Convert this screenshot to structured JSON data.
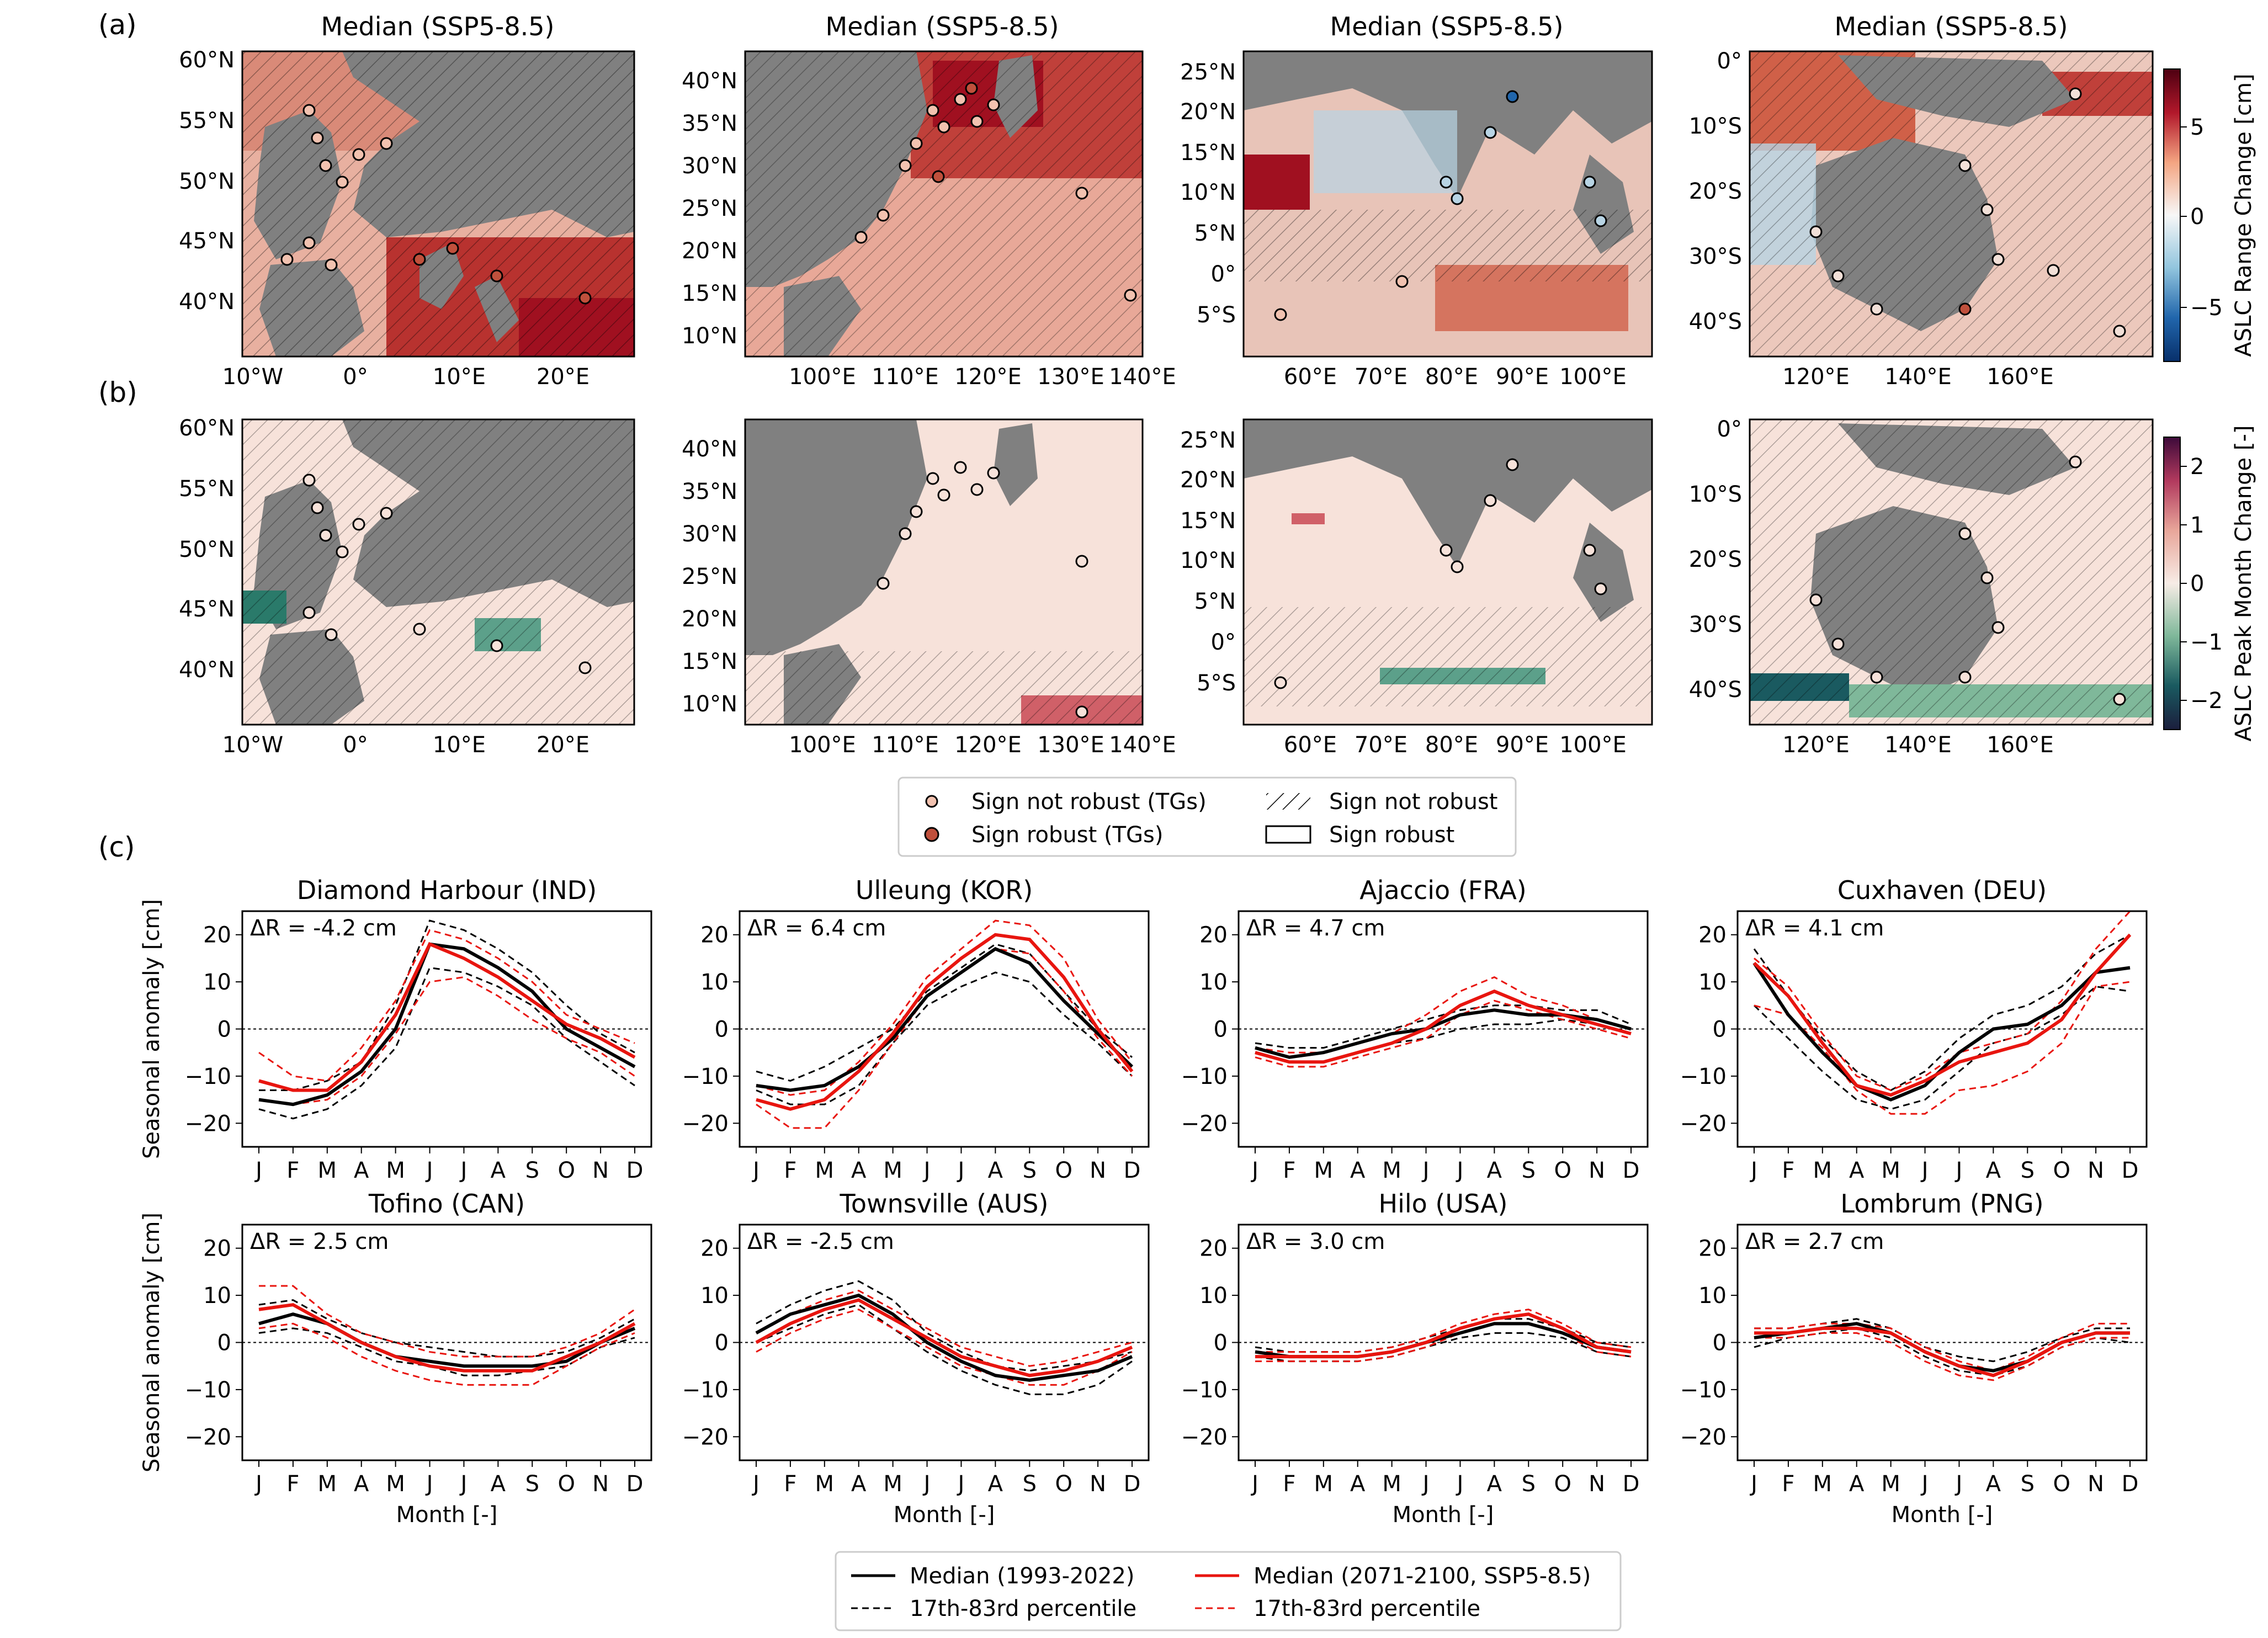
{
  "panel_labels": [
    "(a)",
    "(b)",
    "(c)"
  ],
  "maps": {
    "title": "Median (SSP5-8.5)",
    "columns": [
      {
        "region": "europe",
        "lon_ticks": [
          "10°W",
          "0°",
          "10°E",
          "20°E"
        ],
        "lat_ticks": [
          "60°N",
          "55°N",
          "50°N",
          "45°N",
          "40°N"
        ]
      },
      {
        "region": "east-asia",
        "lon_ticks": [
          "100°E",
          "110°E",
          "120°E",
          "130°E",
          "140°E"
        ],
        "lat_ticks": [
          "40°N",
          "35°N",
          "30°N",
          "25°N",
          "20°N",
          "15°N",
          "10°N"
        ]
      },
      {
        "region": "indian-ocean",
        "lon_ticks": [
          "60°E",
          "70°E",
          "80°E",
          "90°E",
          "100°E"
        ],
        "lat_ticks": [
          "25°N",
          "20°N",
          "15°N",
          "10°N",
          "5°N",
          "0°",
          "5°S"
        ]
      },
      {
        "region": "australia",
        "lon_ticks": [
          "120°E",
          "140°E",
          "160°E"
        ],
        "lat_ticks": [
          "0°",
          "10°S",
          "20°S",
          "30°S",
          "40°S"
        ]
      }
    ],
    "colorbar_a": {
      "label": "ASLC Range Change [cm]",
      "ticks": [
        "5",
        "0",
        "−5"
      ]
    },
    "colorbar_b": {
      "label": "ASLC Peak Month Change [-]",
      "ticks": [
        "2",
        "1",
        "0",
        "−1",
        "−2"
      ]
    },
    "colors": {
      "land": "#808080",
      "warm": "#b2182b",
      "cool": "#2166ac",
      "neutral": "#f7f0ec"
    }
  },
  "legend_maps": {
    "items": [
      "Sign not robust (TGs)",
      "Sign robust (TGs)",
      "Sign not robust",
      "Sign robust"
    ]
  },
  "chart_data": {
    "type": "line",
    "x": [
      "J",
      "F",
      "M",
      "A",
      "M",
      "J",
      "J",
      "A",
      "S",
      "O",
      "N",
      "D"
    ],
    "xlabel": "Month [-]",
    "ylabel": "Seasonal anomaly [cm]",
    "ylim": [
      -25,
      25
    ],
    "yticks": [
      "20",
      "10",
      "0",
      "−10",
      "−20"
    ],
    "colors": {
      "historical": "#000000",
      "future": "#e8150f"
    },
    "legend": {
      "hist_median": "Median (1993-2022)",
      "hist_pct": "17th-83rd percentile",
      "fut_median": "Median (2071-2100, SSP5-8.5)",
      "fut_pct": "17th-83rd percentile"
    },
    "stations": [
      {
        "title": "Diamond Harbour (IND)",
        "annotation": "ΔR = -4.2 cm",
        "hist": [
          -15,
          -16,
          -14,
          -9,
          0,
          18,
          17,
          13,
          8,
          0,
          -4,
          -8
        ],
        "hist_lo": [
          -17,
          -19,
          -17,
          -12,
          -4,
          13,
          12,
          9,
          5,
          -2,
          -7,
          -12
        ],
        "hist_hi": [
          -13,
          -13,
          -11,
          -7,
          5,
          23,
          21,
          17,
          12,
          5,
          -1,
          -5
        ],
        "fut": [
          -11,
          -13,
          -13,
          -7,
          3,
          18,
          15,
          11,
          6,
          1,
          -2,
          -6
        ],
        "fut_lo": [
          -15,
          -16,
          -15,
          -10,
          -1,
          10,
          11,
          7,
          2,
          -2,
          -5,
          -10
        ],
        "fut_hi": [
          -5,
          -10,
          -11,
          -4,
          6,
          21,
          19,
          15,
          10,
          3,
          0,
          -3
        ]
      },
      {
        "title": "Ulleung (KOR)",
        "annotation": "ΔR = 6.4 cm",
        "hist": [
          -12,
          -13,
          -12,
          -8,
          -2,
          7,
          12,
          17,
          14,
          6,
          -1,
          -8
        ],
        "hist_lo": [
          -13,
          -16,
          -16,
          -12,
          -3,
          5,
          9,
          12,
          10,
          3,
          -3,
          -10
        ],
        "hist_hi": [
          -9,
          -11,
          -8,
          -4,
          0,
          8,
          13,
          18,
          16,
          8,
          0,
          -6
        ],
        "fut": [
          -15,
          -17,
          -15,
          -9,
          -1,
          9,
          15,
          20,
          19,
          11,
          0,
          -9
        ],
        "fut_lo": [
          -16,
          -21,
          -21,
          -13,
          -3,
          7,
          12,
          17,
          16,
          8,
          -2,
          -10
        ],
        "fut_hi": [
          -12,
          -14,
          -13,
          -7,
          1,
          11,
          17,
          23,
          22,
          15,
          2,
          -7
        ]
      },
      {
        "title": "Ajaccio (FRA)",
        "annotation": "ΔR = 4.7 cm",
        "hist": [
          -4,
          -6,
          -5,
          -3,
          -1,
          0,
          3,
          4,
          3,
          3,
          2,
          0
        ],
        "hist_lo": [
          -5,
          -7,
          -7,
          -5,
          -3,
          -2,
          0,
          1,
          1,
          2,
          1,
          -1
        ],
        "hist_hi": [
          -3,
          -4,
          -4,
          -2,
          0,
          2,
          4,
          5,
          5,
          4,
          4,
          1
        ],
        "fut": [
          -5,
          -7,
          -7,
          -5,
          -3,
          0,
          5,
          8,
          5,
          3,
          1,
          -1
        ],
        "fut_lo": [
          -6,
          -8,
          -8,
          -6,
          -4,
          -2,
          3,
          6,
          4,
          2,
          0,
          -2
        ],
        "fut_hi": [
          -4,
          -5,
          -5,
          -3,
          -1,
          3,
          8,
          11,
          7,
          5,
          2,
          0
        ]
      },
      {
        "title": "Cuxhaven (DEU)",
        "annotation": "ΔR = 4.1 cm",
        "hist": [
          14,
          3,
          -5,
          -12,
          -15,
          -12,
          -5,
          0,
          1,
          5,
          12,
          13
        ],
        "hist_lo": [
          5,
          -2,
          -9,
          -15,
          -17,
          -15,
          -9,
          -3,
          -1,
          3,
          9,
          8
        ],
        "hist_hi": [
          17,
          7,
          -2,
          -9,
          -13,
          -9,
          -2,
          3,
          5,
          9,
          16,
          20
        ],
        "fut": [
          14,
          7,
          -3,
          -12,
          -14,
          -11,
          -7,
          -5,
          -3,
          2,
          12,
          20
        ],
        "fut_lo": [
          5,
          3,
          -4,
          -13,
          -18,
          -18,
          -13,
          -12,
          -9,
          -3,
          9,
          10
        ],
        "fut_hi": [
          15,
          9,
          -1,
          -10,
          -13,
          -10,
          -5,
          -3,
          -1,
          6,
          17,
          25
        ]
      },
      {
        "title": "Tofino (CAN)",
        "annotation": "ΔR = 2.5 cm",
        "hist": [
          4,
          6,
          4,
          0,
          -3,
          -4,
          -5,
          -5,
          -5,
          -4,
          0,
          3
        ],
        "hist_lo": [
          2,
          3,
          2,
          -1,
          -4,
          -5,
          -7,
          -7,
          -6,
          -5,
          -1,
          1
        ],
        "hist_hi": [
          8,
          9,
          5,
          2,
          0,
          -1,
          -2,
          -3,
          -3,
          -2,
          1,
          5
        ],
        "fut": [
          7,
          8,
          4,
          0,
          -3,
          -5,
          -6,
          -6,
          -6,
          -3,
          0,
          4
        ],
        "fut_lo": [
          3,
          4,
          1,
          -3,
          -6,
          -8,
          -9,
          -9,
          -9,
          -5,
          -1,
          2
        ],
        "fut_hi": [
          12,
          12,
          6,
          2,
          0,
          -2,
          -3,
          -3,
          -3,
          -1,
          2,
          7
        ]
      },
      {
        "title": "Townsville (AUS)",
        "annotation": "ΔR = -2.5 cm",
        "hist": [
          2,
          6,
          8,
          10,
          6,
          0,
          -4,
          -7,
          -8,
          -7,
          -6,
          -3
        ],
        "hist_lo": [
          0,
          3,
          6,
          8,
          3,
          -2,
          -6,
          -9,
          -11,
          -11,
          -9,
          -4
        ],
        "hist_hi": [
          4,
          8,
          11,
          13,
          9,
          2,
          -2,
          -5,
          -6,
          -5,
          -4,
          -2
        ],
        "fut": [
          0,
          4,
          7,
          9,
          5,
          1,
          -3,
          -5,
          -7,
          -6,
          -4,
          -1
        ],
        "fut_lo": [
          -2,
          2,
          5,
          7,
          3,
          -1,
          -5,
          -7,
          -9,
          -9,
          -6,
          -2
        ],
        "fut_hi": [
          2,
          6,
          9,
          11,
          7,
          3,
          -1,
          -3,
          -5,
          -4,
          -2,
          0
        ]
      },
      {
        "title": "Hilo (USA)",
        "annotation": "ΔR = 3.0 cm",
        "hist": [
          -2,
          -3,
          -3,
          -3,
          -2,
          0,
          2,
          4,
          4,
          2,
          -1,
          -2
        ],
        "hist_lo": [
          -3,
          -4,
          -4,
          -4,
          -3,
          -1,
          1,
          2,
          2,
          1,
          -2,
          -3
        ],
        "hist_hi": [
          -1,
          -2,
          -2,
          -2,
          -1,
          1,
          3,
          5,
          5,
          3,
          0,
          -1
        ],
        "fut": [
          -3,
          -3,
          -3,
          -3,
          -2,
          0,
          3,
          5,
          6,
          3,
          -1,
          -2
        ],
        "fut_lo": [
          -4,
          -4,
          -4,
          -4,
          -3,
          -1,
          2,
          4,
          4,
          2,
          -2,
          -3
        ],
        "fut_hi": [
          -2,
          -2,
          -2,
          -2,
          -1,
          1,
          4,
          6,
          7,
          4,
          0,
          -1
        ]
      },
      {
        "title": "Lombrum (PNG)",
        "annotation": "ΔR = 2.7 cm",
        "hist": [
          1,
          2,
          3,
          4,
          2,
          -2,
          -5,
          -6,
          -4,
          0,
          2,
          2
        ],
        "hist_lo": [
          -1,
          1,
          2,
          3,
          1,
          -3,
          -6,
          -7,
          -5,
          -1,
          1,
          0
        ],
        "hist_hi": [
          3,
          3,
          4,
          5,
          3,
          -1,
          -3,
          -4,
          -2,
          1,
          3,
          3
        ],
        "fut": [
          2,
          2,
          3,
          3,
          2,
          -2,
          -5,
          -7,
          -4,
          0,
          2,
          2
        ],
        "fut_lo": [
          1,
          1,
          2,
          2,
          0,
          -4,
          -7,
          -8,
          -5,
          -1,
          1,
          1
        ],
        "fut_hi": [
          3,
          3,
          4,
          4,
          3,
          -1,
          -4,
          -6,
          -3,
          1,
          4,
          4
        ]
      }
    ]
  }
}
